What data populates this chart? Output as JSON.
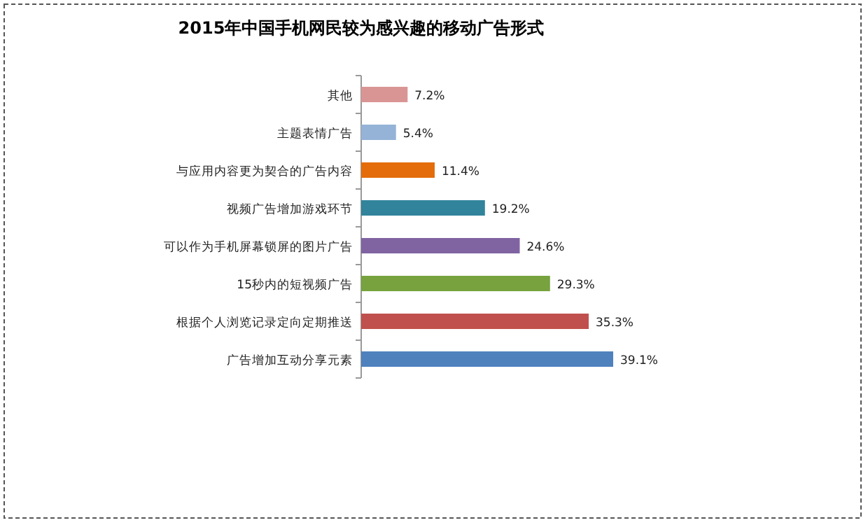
{
  "chart_data": {
    "type": "bar",
    "orientation": "horizontal",
    "title": "2015年中国手机网民较为感兴趣的移动广告形式",
    "categories": [
      "其他",
      "主题表情广告",
      "与应用内容更为契合的广告内容",
      "视频广告增加游戏环节",
      "可以作为手机屏幕锁屏的图片广告",
      "15秒内的短视频广告",
      "根据个人浏览记录定向定期推送",
      "广告增加互动分享元素"
    ],
    "values": [
      7.2,
      5.4,
      11.4,
      19.2,
      24.6,
      29.3,
      35.3,
      39.1
    ],
    "value_labels": [
      "7.2%",
      "5.4%",
      "11.4%",
      "19.2%",
      "24.6%",
      "29.3%",
      "35.3%",
      "39.1%"
    ],
    "colors": [
      "#d99594",
      "#95b3d7",
      "#e46c0a",
      "#31849b",
      "#8064a2",
      "#77a23e",
      "#c0504d",
      "#4f81bd"
    ]
  }
}
